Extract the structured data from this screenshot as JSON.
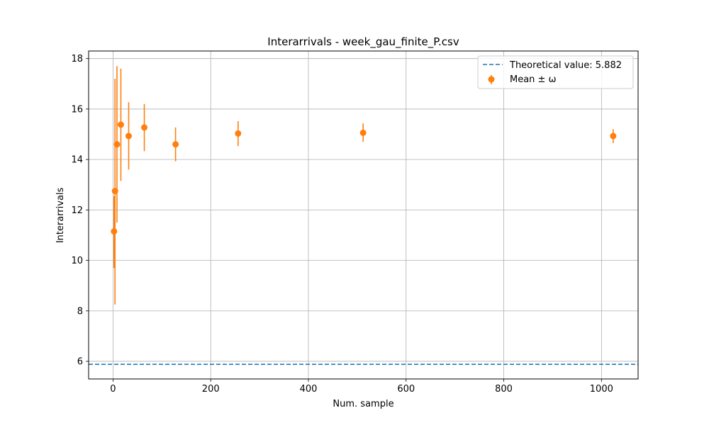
{
  "chart_data": {
    "type": "scatter",
    "title": "Interarrivals - week_gau_finite_P.csv",
    "xlabel": "Num. sample",
    "ylabel": "Interarrivals",
    "xlim": [
      -50,
      1075
    ],
    "ylim": [
      5.3,
      18.3
    ],
    "xticks": [
      0,
      200,
      400,
      600,
      800,
      1000
    ],
    "yticks": [
      6,
      8,
      10,
      12,
      14,
      16,
      18
    ],
    "grid": true,
    "legend_position": "top-right",
    "reference_line": {
      "name": "Theoretical value: 5.882",
      "value": 5.882,
      "color": "#1f77b4",
      "style": "dashed"
    },
    "series": [
      {
        "name": "Mean ± ω",
        "color": "#ff7f0e",
        "points": [
          {
            "x": 2,
            "y": 11.15,
            "low": 9.7,
            "high": 12.55
          },
          {
            "x": 4,
            "y": 12.75,
            "low": 8.25,
            "high": 17.2
          },
          {
            "x": 8,
            "y": 14.6,
            "low": 11.5,
            "high": 17.7
          },
          {
            "x": 16,
            "y": 15.38,
            "low": 13.15,
            "high": 17.6
          },
          {
            "x": 32,
            "y": 14.93,
            "low": 13.6,
            "high": 16.27
          },
          {
            "x": 64,
            "y": 15.27,
            "low": 14.33,
            "high": 16.2
          },
          {
            "x": 128,
            "y": 14.6,
            "low": 13.93,
            "high": 15.27
          },
          {
            "x": 256,
            "y": 15.03,
            "low": 14.53,
            "high": 15.52
          },
          {
            "x": 512,
            "y": 15.06,
            "low": 14.7,
            "high": 15.43
          },
          {
            "x": 1024,
            "y": 14.93,
            "low": 14.65,
            "high": 15.2
          }
        ]
      }
    ]
  }
}
